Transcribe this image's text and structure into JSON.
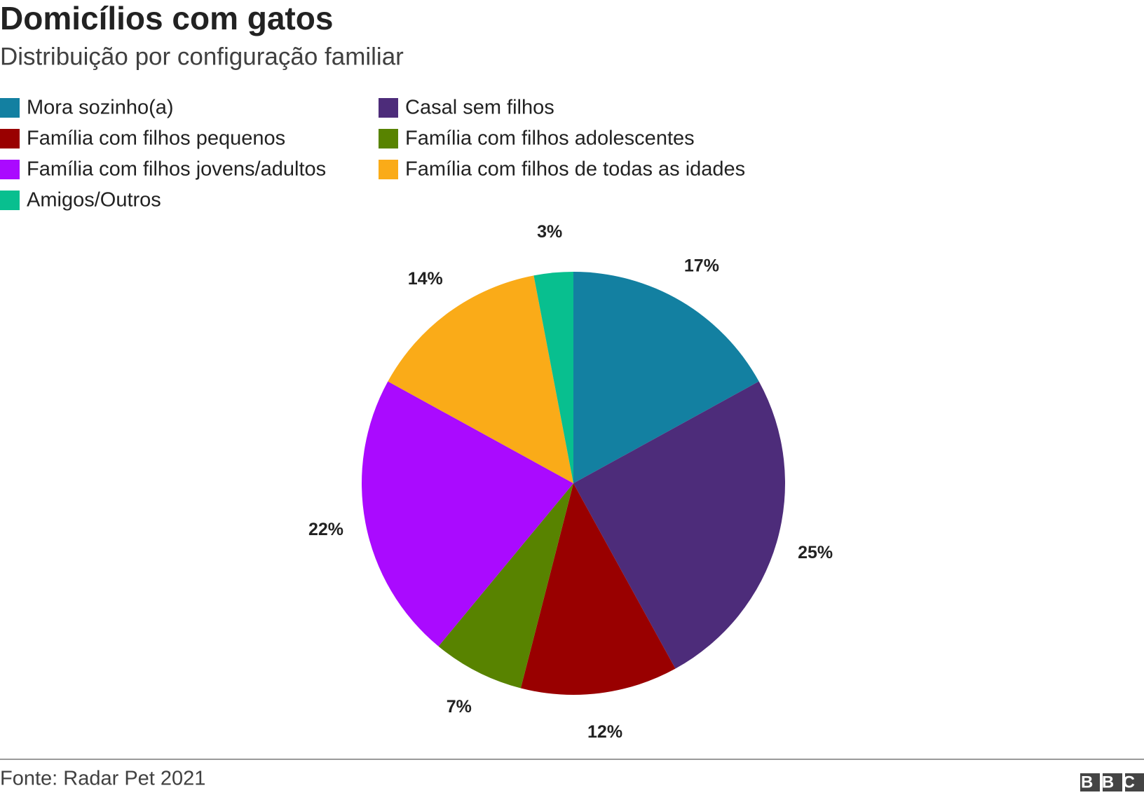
{
  "chart_data": {
    "type": "pie",
    "title": "Domicílios com gatos",
    "subtitle": "Distribuição por configuração familiar",
    "categories": [
      "Mora sozinho(a)",
      "Casal sem filhos",
      "Família com filhos pequenos",
      "Família com filhos adolescentes",
      "Família com filhos jovens/adultos",
      "Família com filhos de todas as idades",
      "Amigos/Outros"
    ],
    "values": [
      17,
      25,
      12,
      7,
      22,
      14,
      3
    ],
    "value_labels": [
      "17%",
      "25%",
      "12%",
      "7%",
      "22%",
      "14%",
      "3%"
    ],
    "colors": [
      "#1380a1",
      "#4d2c7a",
      "#990000",
      "#588300",
      "#aa0aff",
      "#faab18",
      "#08bf8f"
    ],
    "source": "Fonte: Radar Pet 2021",
    "logo": "BBC"
  }
}
